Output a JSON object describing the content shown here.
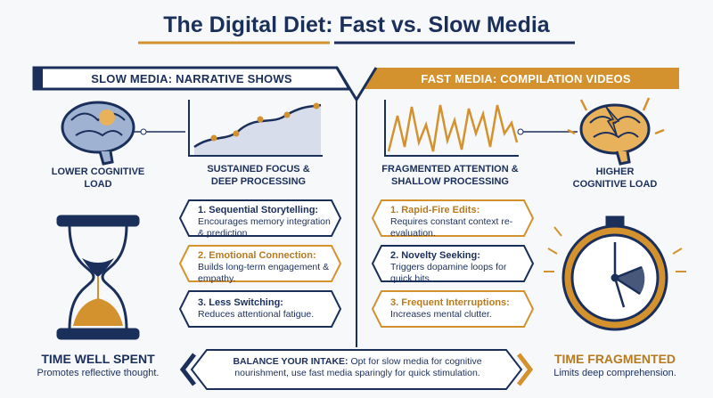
{
  "title": "The Digital Diet: Fast vs. Slow Media",
  "slow": {
    "header": "SLOW MEDIA: NARRATIVE SHOWS",
    "brain_label": "LOWER COGNITIVE LOAD",
    "chart_label": "SUSTAINED FOCUS & DEEP PROCESSING",
    "items": [
      {
        "title": "1. Sequential Storytelling:",
        "text": "Encourages memory integration & prediction."
      },
      {
        "title": "2. Emotional Connection:",
        "text": "Builds long-term engagement & empathy."
      },
      {
        "title": "3. Less Switching:",
        "text": "Reduces attentional fatigue."
      }
    ],
    "time_title": "TIME WELL SPENT",
    "time_text": "Promotes reflective thought."
  },
  "fast": {
    "header": "FAST MEDIA: COMPILATION VIDEOS",
    "brain_label": "HIGHER COGNITIVE LOAD",
    "chart_label": "FRAGMENTED ATTENTION & SHALLOW PROCESSING",
    "items": [
      {
        "title": "1. Rapid-Fire Edits:",
        "text": "Requires constant context re-evaluation."
      },
      {
        "title": "2. Novelty Seeking:",
        "text": "Triggers dopamine loops for quick hits."
      },
      {
        "title": "3. Frequent Interruptions:",
        "text": "Increases mental clutter."
      }
    ],
    "time_title": "TIME FRAGMENTED",
    "time_text": "Limits deep comprehension."
  },
  "footer": {
    "title": "BALANCE YOUR INTAKE:",
    "text": "Opt for slow media for cognitive nourishment, use fast media sparingly for quick stimulation."
  }
}
